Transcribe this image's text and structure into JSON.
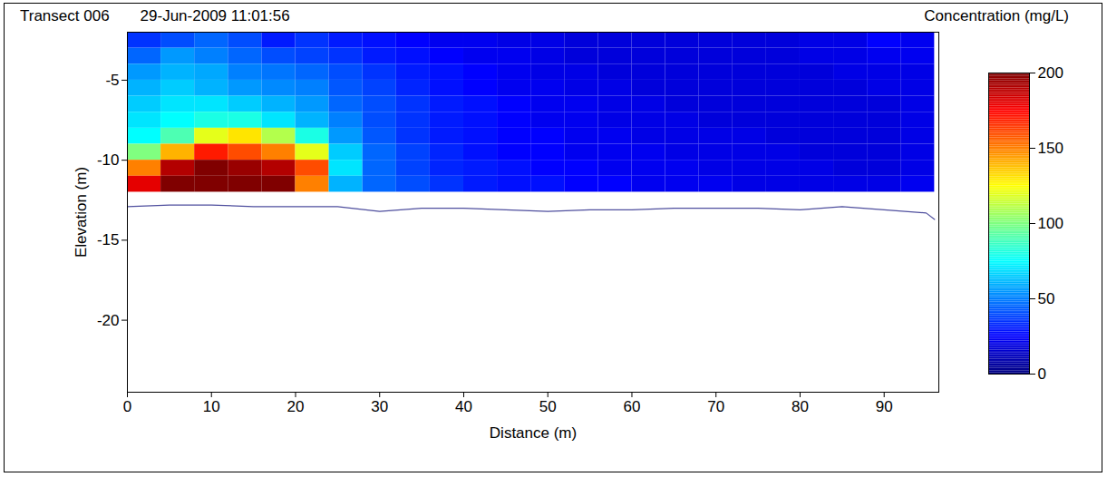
{
  "chart_data": {
    "type": "heatmap",
    "title": "Transect 006",
    "subtitle": "29-Jun-2009 11:01:56",
    "x_label": "Distance (m)",
    "y_label": "Elevation (m)",
    "xlim": [
      0,
      96.5
    ],
    "xticks": [
      0,
      10,
      20,
      30,
      40,
      50,
      60,
      70,
      80,
      90
    ],
    "ylim": [
      -24.5,
      -2
    ],
    "yticks": [
      -5,
      -10,
      -15,
      -20
    ],
    "x_edges": [
      0,
      4,
      8,
      12,
      16,
      20,
      24,
      28,
      32,
      36,
      40,
      44,
      48,
      52,
      56,
      60,
      64,
      68,
      72,
      76,
      80,
      84,
      88,
      92,
      96
    ],
    "y_edges": [
      -2,
      -3,
      -4,
      -5,
      -6,
      -7,
      -8,
      -9,
      -10,
      -11,
      -12
    ],
    "cells": [
      [
        35,
        40,
        45,
        40,
        30,
        35,
        30,
        28,
        25,
        22,
        22,
        20,
        20,
        18,
        18,
        18,
        18,
        18,
        18,
        18,
        20,
        20,
        25,
        22
      ],
      [
        45,
        55,
        50,
        45,
        40,
        38,
        35,
        30,
        28,
        25,
        22,
        22,
        20,
        18,
        18,
        18,
        18,
        18,
        18,
        18,
        20,
        20,
        22,
        22
      ],
      [
        55,
        60,
        58,
        50,
        48,
        45,
        40,
        35,
        30,
        28,
        25,
        22,
        20,
        20,
        18,
        18,
        18,
        18,
        18,
        18,
        18,
        20,
        20,
        20
      ],
      [
        60,
        65,
        60,
        55,
        52,
        50,
        42,
        38,
        32,
        28,
        25,
        22,
        22,
        20,
        20,
        18,
        18,
        18,
        18,
        18,
        18,
        18,
        20,
        20
      ],
      [
        65,
        70,
        70,
        65,
        60,
        55,
        45,
        40,
        35,
        30,
        28,
        25,
        22,
        22,
        20,
        20,
        18,
        18,
        18,
        18,
        18,
        18,
        18,
        20
      ],
      [
        70,
        75,
        80,
        80,
        70,
        60,
        50,
        40,
        35,
        30,
        28,
        25,
        22,
        22,
        20,
        20,
        20,
        18,
        18,
        18,
        18,
        18,
        18,
        20
      ],
      [
        75,
        90,
        120,
        130,
        110,
        80,
        55,
        42,
        35,
        30,
        28,
        25,
        25,
        22,
        22,
        20,
        20,
        20,
        20,
        18,
        18,
        18,
        18,
        20
      ],
      [
        100,
        140,
        170,
        160,
        150,
        120,
        65,
        45,
        38,
        32,
        28,
        25,
        25,
        22,
        22,
        22,
        20,
        20,
        20,
        20,
        18,
        18,
        18,
        20
      ],
      [
        150,
        190,
        200,
        195,
        190,
        160,
        70,
        45,
        38,
        32,
        30,
        28,
        25,
        25,
        22,
        22,
        22,
        20,
        20,
        20,
        20,
        18,
        18,
        20
      ],
      [
        180,
        200,
        200,
        200,
        200,
        150,
        60,
        45,
        40,
        35,
        30,
        28,
        28,
        25,
        25,
        22,
        22,
        22,
        20,
        20,
        20,
        20,
        20,
        22
      ]
    ],
    "bed": {
      "color": "#4f4f9e",
      "x": [
        0,
        5,
        10,
        15,
        20,
        25,
        30,
        35,
        40,
        45,
        50,
        55,
        60,
        65,
        70,
        75,
        80,
        85,
        90,
        95,
        96
      ],
      "values": [
        -12.9,
        -12.8,
        -12.8,
        -12.9,
        -12.9,
        -12.9,
        -13.2,
        -13.0,
        -13.0,
        -13.1,
        -13.2,
        -13.1,
        -13.1,
        -13.0,
        -13.0,
        -13.0,
        -13.1,
        -12.9,
        -13.1,
        -13.3,
        -13.7
      ]
    },
    "colorbar": {
      "label": "Concentration (mg/L)",
      "lim": [
        0,
        200
      ],
      "ticks": [
        0,
        50,
        100,
        150,
        200
      ]
    }
  }
}
